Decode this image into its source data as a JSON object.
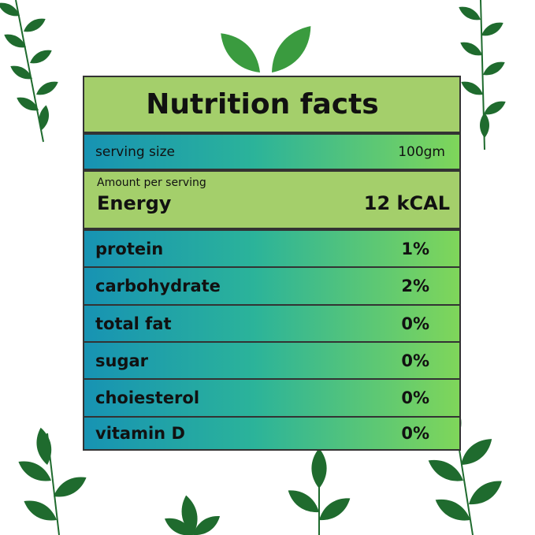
{
  "header": {
    "title": "Nutrition facts"
  },
  "serving": {
    "label": "serving size",
    "value": "100gm"
  },
  "energy": {
    "caption": "Amount per serving",
    "label": "Energy",
    "value": "12 kCAL"
  },
  "rows": [
    {
      "label": "protein",
      "value": "1%"
    },
    {
      "label": "carbohydrate",
      "value": "2%"
    },
    {
      "label": "total fat",
      "value": "0%"
    },
    {
      "label": "sugar",
      "value": "0%"
    },
    {
      "label": "choiesterol",
      "value": "0%"
    },
    {
      "label": "vitamin D",
      "value": "0%"
    }
  ]
}
